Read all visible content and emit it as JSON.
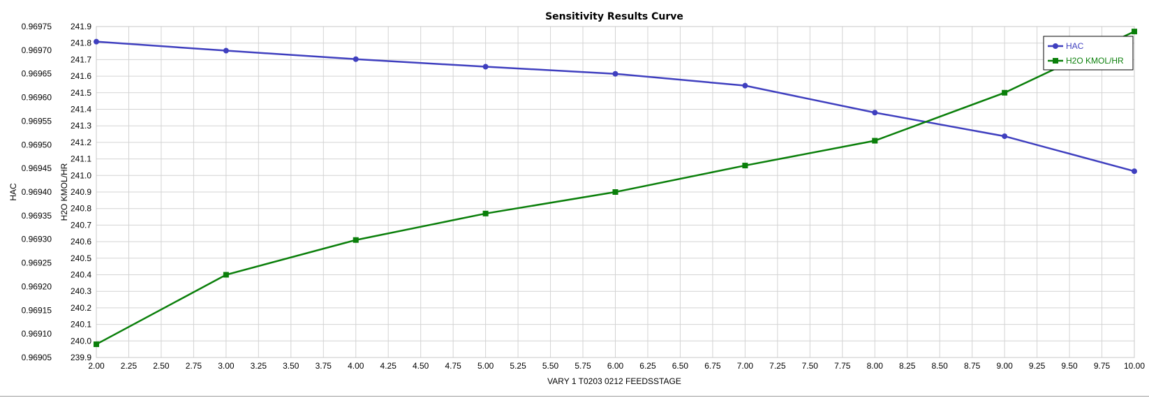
{
  "chart_data": {
    "type": "line",
    "title": "Sensitivity Results Curve",
    "xlabel": "VARY   1 T0203 0212 FEEDSSTAGE",
    "ylabel_left": "HAC",
    "ylabel_right": "H2O KMOL/HR",
    "xlim": [
      2.0,
      10.0
    ],
    "x_ticks": [
      "2.00",
      "2.25",
      "2.50",
      "2.75",
      "3.00",
      "3.25",
      "3.50",
      "3.75",
      "4.00",
      "4.25",
      "4.50",
      "4.75",
      "5.00",
      "5.25",
      "5.50",
      "5.75",
      "6.00",
      "6.25",
      "6.50",
      "6.75",
      "7.00",
      "7.25",
      "7.50",
      "7.75",
      "8.00",
      "8.25",
      "8.50",
      "8.75",
      "9.00",
      "9.25",
      "9.50",
      "9.75",
      "10.00"
    ],
    "y_left_lim": [
      0.96905,
      0.96975
    ],
    "y_left_ticks": [
      "0.96905",
      "0.96910",
      "0.96915",
      "0.96920",
      "0.96925",
      "0.96930",
      "0.96935",
      "0.96940",
      "0.96945",
      "0.96950",
      "0.96955",
      "0.96960",
      "0.96965",
      "0.96970",
      "0.96975"
    ],
    "y_right_lim": [
      239.9,
      241.9
    ],
    "y_right_ticks": [
      "239.9",
      "240.0",
      "240.1",
      "240.2",
      "240.3",
      "240.4",
      "240.5",
      "240.6",
      "240.7",
      "240.8",
      "240.9",
      "241.0",
      "241.1",
      "241.2",
      "241.3",
      "241.4",
      "241.5",
      "241.6",
      "241.7",
      "241.8",
      "241.9"
    ],
    "grid": true,
    "legend_position": "top-right",
    "series": [
      {
        "name": "HAC",
        "axis": "left",
        "color": "#3f3fbf",
        "marker": "circle",
        "x": [
          2,
          3,
          4,
          5,
          6,
          7,
          8,
          9,
          10
        ],
        "y": [
          0.969718,
          0.969699,
          0.969681,
          0.969665,
          0.96965,
          0.969625,
          0.969568,
          0.969518,
          0.969444
        ]
      },
      {
        "name": "H2O KMOL/HR",
        "axis": "right",
        "color": "#0a7f0a",
        "marker": "square",
        "x": [
          2,
          3,
          4,
          5,
          6,
          7,
          8,
          9,
          10
        ],
        "y": [
          239.98,
          240.4,
          240.61,
          240.77,
          240.9,
          241.06,
          241.21,
          241.5,
          241.87
        ]
      }
    ]
  }
}
